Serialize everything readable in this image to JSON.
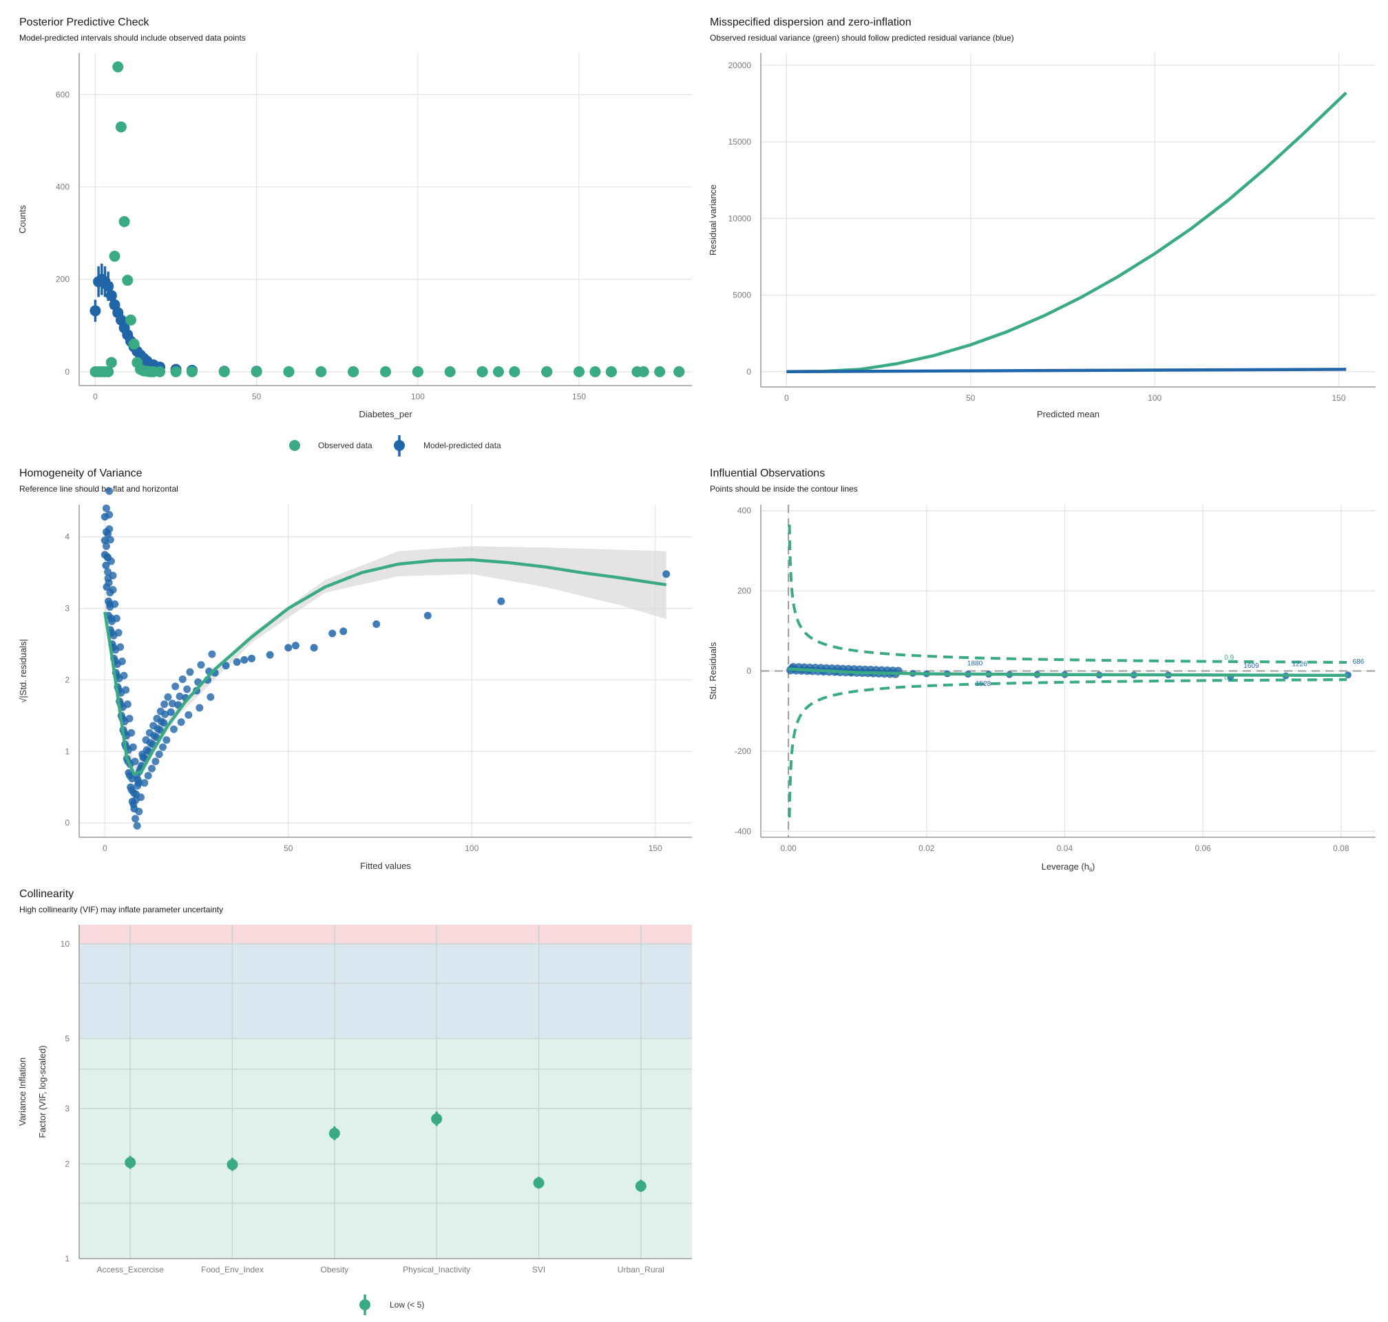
{
  "colors": {
    "green": "#3aaa85",
    "blue": "#1f65a8",
    "grid": "#e3e3e3",
    "axis": "#999999",
    "tick": "#7a7a7a",
    "ribbon": "#d9d9d9",
    "red_zone": "#f8d9dc",
    "blue_zone": "#dbe7f0",
    "green_zone": "#e0f1ea",
    "redpt": "#c0504d"
  },
  "chart_data": [
    {
      "id": "ppc",
      "type": "scatter",
      "title": "Posterior Predictive Check",
      "subtitle": "Model-predicted intervals should include observed data points",
      "xlabel": "Diabetes_per",
      "ylabel": "Counts",
      "xlim": [
        -5,
        185
      ],
      "ylim": [
        -30,
        690
      ],
      "xticks": [
        0,
        50,
        100,
        150
      ],
      "yticks": [
        0,
        200,
        400,
        600
      ],
      "series": [
        {
          "name": "Observed data",
          "points": [
            [
              0,
              0
            ],
            [
              1,
              0
            ],
            [
              2,
              0
            ],
            [
              3,
              0
            ],
            [
              4,
              0
            ],
            [
              5,
              20
            ],
            [
              6,
              250
            ],
            [
              7,
              660
            ],
            [
              8,
              530
            ],
            [
              9,
              325
            ],
            [
              10,
              198
            ],
            [
              11,
              112
            ],
            [
              12,
              60
            ],
            [
              13,
              20
            ],
            [
              14,
              5
            ],
            [
              15,
              2
            ],
            [
              16,
              1
            ],
            [
              17,
              0
            ],
            [
              18,
              0
            ],
            [
              20,
              0
            ],
            [
              25,
              0
            ],
            [
              30,
              0
            ],
            [
              40,
              0
            ],
            [
              50,
              0
            ],
            [
              60,
              0
            ],
            [
              70,
              0
            ],
            [
              80,
              0
            ],
            [
              90,
              0
            ],
            [
              100,
              0
            ],
            [
              110,
              0
            ],
            [
              120,
              0
            ],
            [
              125,
              0
            ],
            [
              130,
              0
            ],
            [
              140,
              0
            ],
            [
              150,
              0
            ],
            [
              155,
              0
            ],
            [
              160,
              0
            ],
            [
              168,
              0
            ],
            [
              170,
              0
            ],
            [
              175,
              0
            ],
            [
              181,
              0
            ]
          ]
        },
        {
          "name": "Model-predicted data",
          "points": [
            [
              0,
              132
            ],
            [
              1,
              195
            ],
            [
              2,
              200
            ],
            [
              3,
              195
            ],
            [
              4,
              185
            ],
            [
              5,
              165
            ],
            [
              6,
              145
            ],
            [
              7,
              128
            ],
            [
              8,
              112
            ],
            [
              9,
              95
            ],
            [
              10,
              80
            ],
            [
              11,
              66
            ],
            [
              12,
              54
            ],
            [
              13,
              44
            ],
            [
              14,
              36
            ],
            [
              15,
              29
            ],
            [
              16,
              23
            ],
            [
              18,
              15
            ],
            [
              20,
              10
            ],
            [
              25,
              5
            ],
            [
              30,
              3
            ],
            [
              40,
              1
            ],
            [
              50,
              1
            ],
            [
              60,
              0
            ],
            [
              80,
              0
            ],
            [
              100,
              0
            ],
            [
              120,
              0
            ],
            [
              140,
              0
            ],
            [
              160,
              0
            ],
            [
              181,
              0
            ]
          ]
        }
      ],
      "legend": [
        "Observed data",
        "Model-predicted data"
      ]
    },
    {
      "id": "disp",
      "type": "line",
      "title": "Misspecified dispersion and zero-inflation",
      "subtitle": "Observed residual variance (green) should follow predicted residual variance (blue)",
      "xlabel": "Predicted mean",
      "ylabel": "Residual variance",
      "xlim": [
        -7,
        160
      ],
      "ylim": [
        -1000,
        20800
      ],
      "xticks": [
        0,
        50,
        100,
        150
      ],
      "yticks": [
        0,
        5000,
        10000,
        15000,
        20000
      ],
      "series": [
        {
          "name": "observed",
          "points": [
            [
              0,
              0
            ],
            [
              10,
              20
            ],
            [
              20,
              150
            ],
            [
              30,
              520
            ],
            [
              40,
              1050
            ],
            [
              50,
              1750
            ],
            [
              60,
              2620
            ],
            [
              70,
              3650
            ],
            [
              80,
              4850
            ],
            [
              90,
              6200
            ],
            [
              100,
              7700
            ],
            [
              110,
              9350
            ],
            [
              120,
              11200
            ],
            [
              130,
              13250
            ],
            [
              140,
              15450
            ],
            [
              152,
              18200
            ]
          ]
        },
        {
          "name": "predicted",
          "points": [
            [
              0,
              0
            ],
            [
              50,
              50
            ],
            [
              100,
              100
            ],
            [
              152,
              152
            ]
          ]
        }
      ]
    },
    {
      "id": "homog",
      "type": "scatter",
      "title": "Homogeneity of Variance",
      "subtitle": "Reference line should be flat and horizontal",
      "xlabel": "Fitted values",
      "ylabel": "√|Std. residuals|",
      "xlim": [
        -7,
        160
      ],
      "ylim": [
        -0.2,
        4.45
      ],
      "xticks": [
        0,
        50,
        100,
        150
      ],
      "yticks": [
        0,
        1,
        2,
        3,
        4
      ],
      "points": [
        [
          0,
          4.28
        ],
        [
          0,
          3.95
        ],
        [
          0,
          3.75
        ],
        [
          0.3,
          3.6
        ],
        [
          0.5,
          3.3
        ],
        [
          1,
          3.1
        ],
        [
          1,
          2.9
        ],
        [
          1.5,
          2.7
        ],
        [
          2,
          2.5
        ],
        [
          2.5,
          2.3
        ],
        [
          3,
          2.1
        ],
        [
          3.5,
          1.9
        ],
        [
          4,
          1.7
        ],
        [
          4.5,
          1.5
        ],
        [
          5,
          1.3
        ],
        [
          5.5,
          1.1
        ],
        [
          6,
          0.9
        ],
        [
          6.5,
          0.7
        ],
        [
          7,
          0.5
        ],
        [
          7.5,
          0.3
        ],
        [
          8,
          0.2
        ],
        [
          8.5,
          0.4
        ],
        [
          9,
          0.6
        ],
        [
          10,
          0.8
        ],
        [
          11,
          0.9
        ],
        [
          12,
          1.0
        ],
        [
          13,
          1.1
        ],
        [
          14,
          1.2
        ],
        [
          15,
          1.3
        ],
        [
          16,
          1.4
        ],
        [
          18,
          1.55
        ],
        [
          20,
          1.65
        ],
        [
          22,
          1.75
        ],
        [
          25,
          1.85
        ],
        [
          28,
          2.0
        ],
        [
          30,
          2.1
        ],
        [
          33,
          2.2
        ],
        [
          36,
          2.25
        ],
        [
          38,
          2.28
        ],
        [
          40,
          2.3
        ],
        [
          45,
          2.35
        ],
        [
          50,
          2.45
        ],
        [
          52,
          2.48
        ],
        [
          57,
          2.45
        ],
        [
          62,
          2.65
        ],
        [
          65,
          2.68
        ],
        [
          74,
          2.78
        ],
        [
          88,
          2.9
        ],
        [
          108,
          3.1
        ],
        [
          153,
          3.48
        ]
      ],
      "fit": [
        [
          0,
          2.95
        ],
        [
          2,
          2.3
        ],
        [
          4,
          1.6
        ],
        [
          6,
          0.9
        ],
        [
          8,
          0.68
        ],
        [
          10,
          0.72
        ],
        [
          13,
          1.0
        ],
        [
          17,
          1.35
        ],
        [
          22,
          1.7
        ],
        [
          30,
          2.15
        ],
        [
          40,
          2.6
        ],
        [
          50,
          3.0
        ],
        [
          60,
          3.3
        ],
        [
          70,
          3.5
        ],
        [
          80,
          3.62
        ],
        [
          90,
          3.67
        ],
        [
          100,
          3.68
        ],
        [
          110,
          3.64
        ],
        [
          120,
          3.58
        ],
        [
          130,
          3.5
        ],
        [
          140,
          3.43
        ],
        [
          153,
          3.33
        ]
      ],
      "ribbon_upper": [
        [
          0,
          3.1
        ],
        [
          8,
          0.8
        ],
        [
          20,
          1.65
        ],
        [
          40,
          2.65
        ],
        [
          60,
          3.4
        ],
        [
          80,
          3.8
        ],
        [
          100,
          3.87
        ],
        [
          120,
          3.85
        ],
        [
          140,
          3.82
        ],
        [
          153,
          3.8
        ]
      ],
      "ribbon_lower": [
        [
          0,
          2.8
        ],
        [
          8,
          0.58
        ],
        [
          20,
          1.5
        ],
        [
          40,
          2.52
        ],
        [
          60,
          3.22
        ],
        [
          80,
          3.45
        ],
        [
          100,
          3.48
        ],
        [
          120,
          3.3
        ],
        [
          140,
          3.05
        ],
        [
          153,
          2.85
        ]
      ]
    },
    {
      "id": "infl",
      "type": "scatter",
      "title": "Influential Observations",
      "subtitle": "Points should be inside the contour lines",
      "xlabel": "Leverage (h",
      "xlabel_sub": "ii",
      "xlabel_end": ")",
      "ylabel": "Std. Residuals",
      "xlim": [
        -0.004,
        0.085
      ],
      "ylim": [
        -415,
        415
      ],
      "xticks": [
        "0.00",
        "0.02",
        "0.04",
        "0.06",
        "0.08"
      ],
      "xtick_vals": [
        0,
        0.02,
        0.04,
        0.06,
        0.08
      ],
      "yticks": [
        -400,
        -200,
        0,
        200,
        400
      ],
      "points": [
        [
          0.0005,
          8
        ],
        [
          0.001,
          5
        ],
        [
          0.002,
          3
        ],
        [
          0.003,
          1
        ],
        [
          0.005,
          0
        ],
        [
          0.007,
          -2
        ],
        [
          0.009,
          -3
        ],
        [
          0.012,
          -4
        ],
        [
          0.015,
          -5
        ],
        [
          0.018,
          -6
        ],
        [
          0.02,
          -7
        ],
        [
          0.023,
          -7
        ],
        [
          0.026,
          -8
        ],
        [
          0.029,
          -8
        ],
        [
          0.032,
          -9
        ],
        [
          0.036,
          -9
        ],
        [
          0.04,
          -9
        ],
        [
          0.045,
          -10
        ],
        [
          0.05,
          -10
        ],
        [
          0.055,
          -10
        ],
        [
          0.064,
          -15
        ],
        [
          0.072,
          -12
        ],
        [
          0.081,
          -10
        ]
      ],
      "fit": [
        [
          0,
          5
        ],
        [
          0.01,
          -4
        ],
        [
          0.02,
          -7
        ],
        [
          0.04,
          -9
        ],
        [
          0.06,
          -10
        ],
        [
          0.081,
          -11
        ]
      ],
      "labels": [
        {
          "x": 0.027,
          "y": 14,
          "t": "1880"
        },
        {
          "x": 0.0282,
          "y": -37,
          "t": "1528"
        },
        {
          "x": 0.067,
          "y": 8,
          "t": "1609"
        },
        {
          "x": 0.074,
          "y": 12,
          "t": "1226"
        },
        {
          "x": 0.0825,
          "y": 18,
          "t": "686"
        },
        {
          "x": 0.0638,
          "y": 28,
          "t": "0.9"
        },
        {
          "x": 0.0638,
          "y": -22,
          "t": "0.9"
        }
      ]
    },
    {
      "id": "vif",
      "type": "scatter",
      "title": "Collinearity",
      "subtitle": "High collinearity (VIF) may inflate parameter uncertainty",
      "xlabel": "",
      "ylabel_line1": "Variance Inflation",
      "ylabel_line2": "Factor (VIF, log-scaled)",
      "yscale": "log",
      "ylim": [
        1,
        11.5
      ],
      "yticks": [
        1,
        2,
        3,
        5,
        10
      ],
      "categories": [
        "Access_Excercise",
        "Food_Env_Index",
        "Obesity",
        "Physical_Inactivity",
        "SVI",
        "Urban_Rural"
      ],
      "values": [
        2.02,
        1.99,
        2.5,
        2.78,
        1.74,
        1.7
      ],
      "ci_low": [
        1.93,
        1.9,
        2.38,
        2.64,
        1.67,
        1.63
      ],
      "ci_high": [
        2.12,
        2.09,
        2.63,
        2.93,
        1.82,
        1.78
      ],
      "legend": [
        "Low (< 5)"
      ]
    }
  ]
}
